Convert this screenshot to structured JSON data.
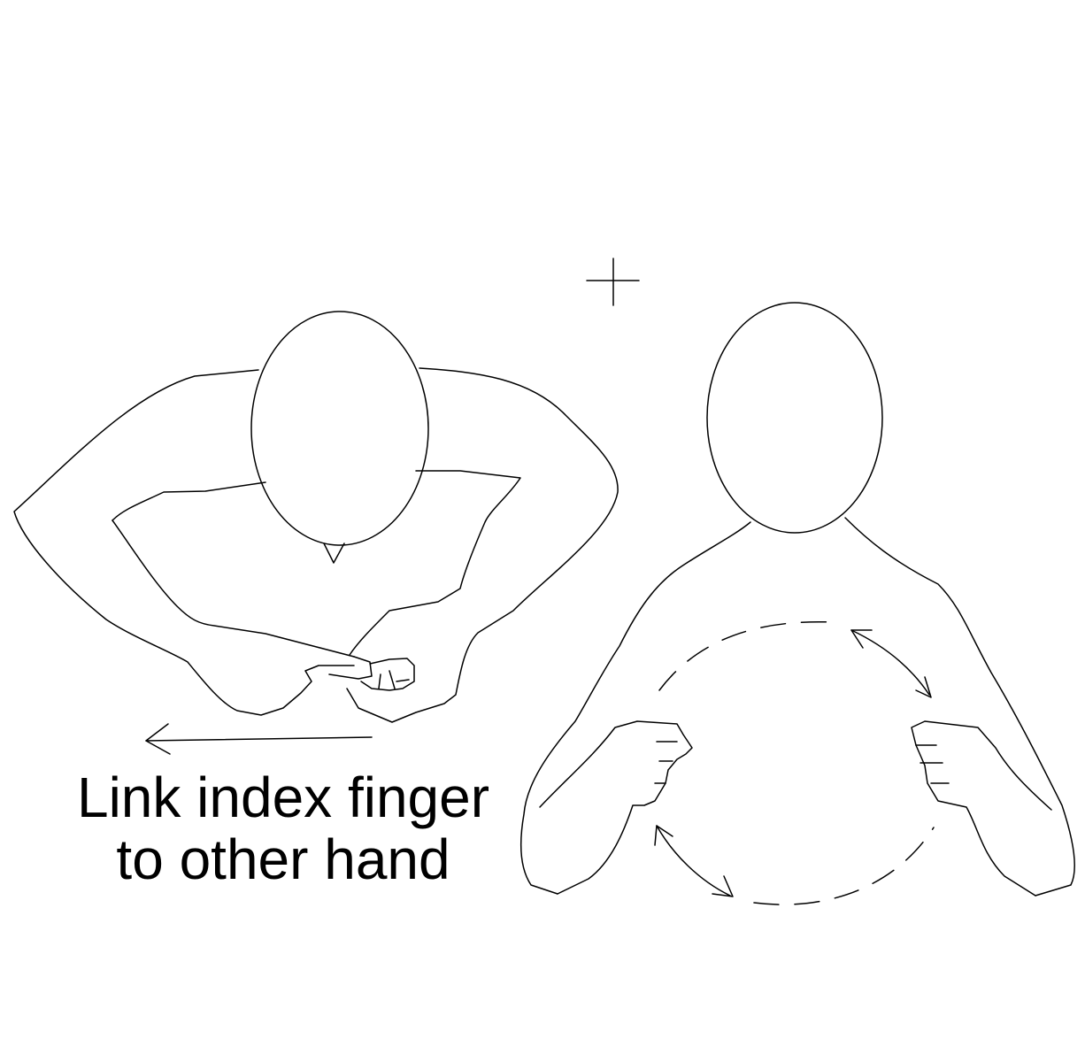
{
  "caption": {
    "line1": "Link index finger",
    "line2": "to other hand"
  },
  "figures": {
    "left": "signer-viewed-from-above",
    "right": "signer-front-view"
  },
  "symbols": {
    "position_marker": "crosshair-icon",
    "movement_arrow": "arrow-left-icon",
    "circular_motion": "circular-movement-icon"
  },
  "colors": {
    "ink": "#000000",
    "background": "#ffffff"
  }
}
